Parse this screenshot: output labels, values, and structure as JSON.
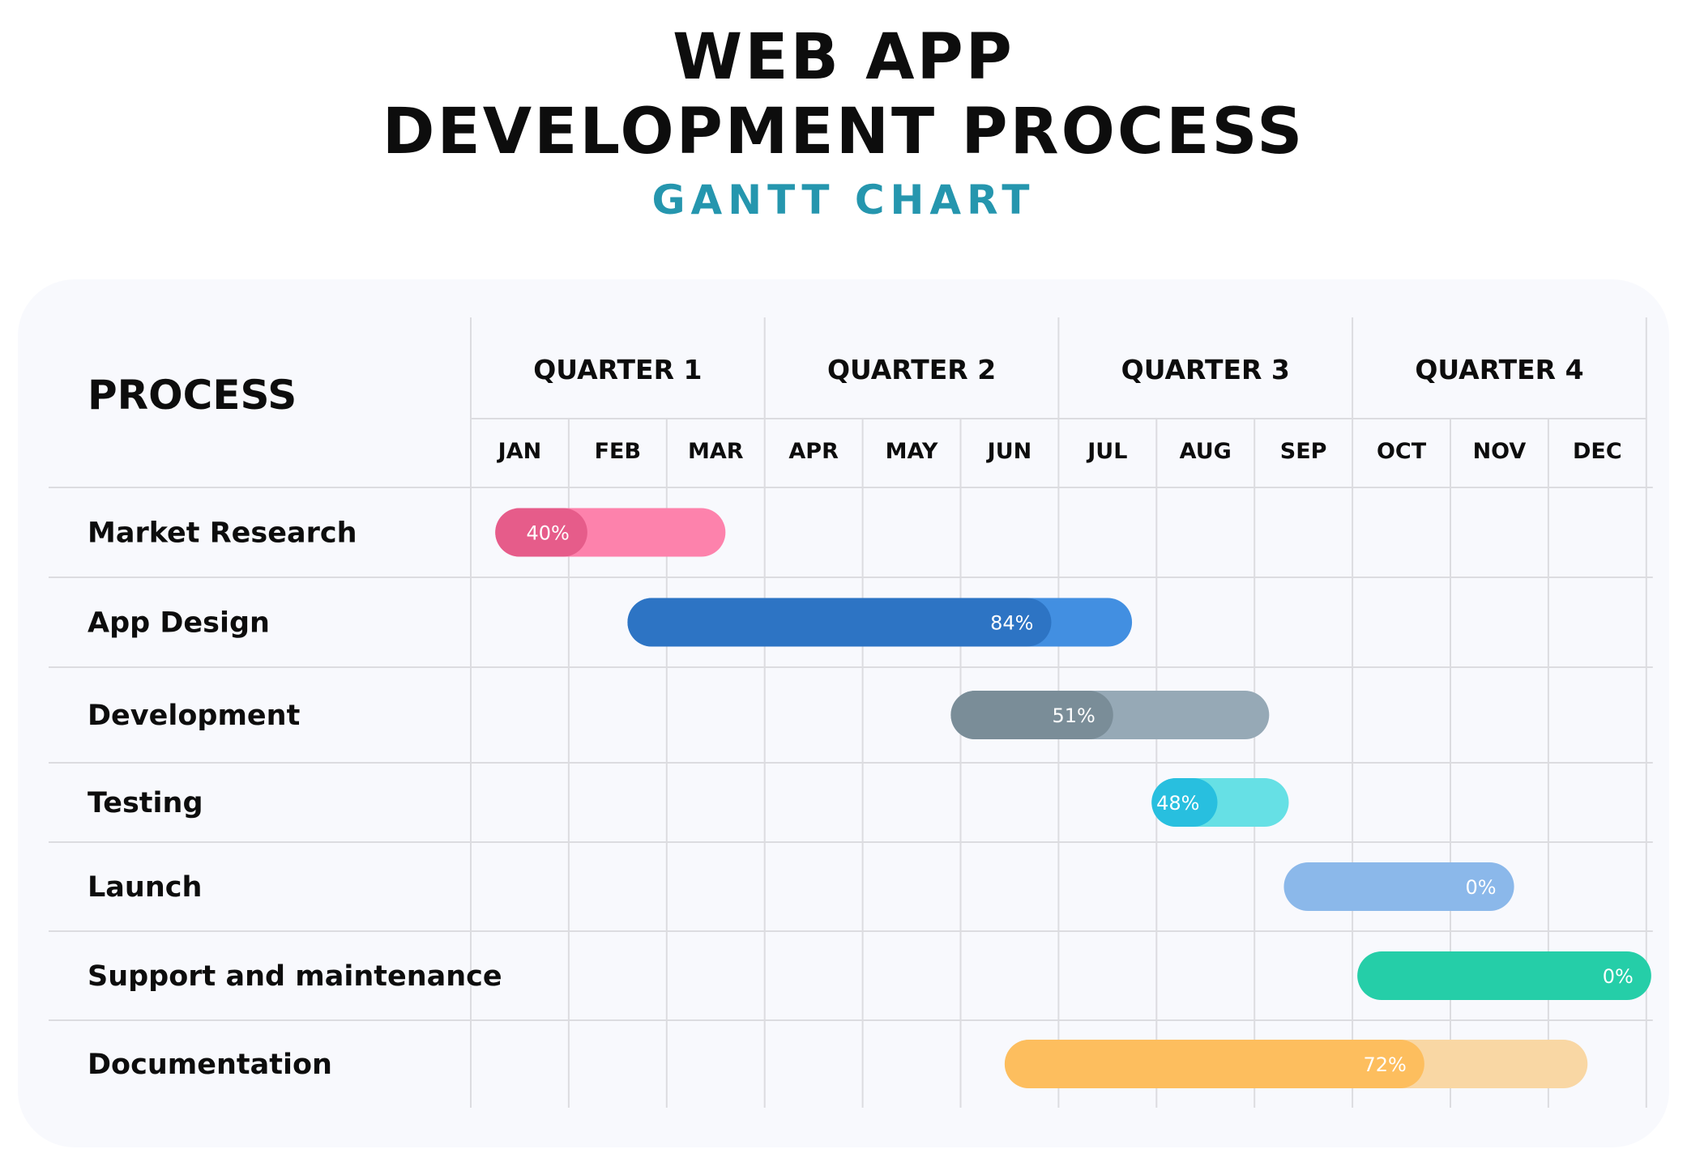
{
  "header": {
    "title_line1": "WEB APP",
    "title_line2": "DEVELOPMENT PROCESS",
    "subtitle": "GANTT CHART"
  },
  "table": {
    "process_header": "PROCESS"
  },
  "colors": {
    "panel_bg": "#f8f9fd",
    "grid": "#dcdce0",
    "title": "#0d0d0d",
    "subtitle": "#2596ae"
  },
  "chart_data": {
    "type": "gantt",
    "title": "WEB APP DEVELOPMENT PROCESS",
    "subtitle": "GANTT CHART",
    "quarters": [
      "QUARTER 1",
      "QUARTER 2",
      "QUARTER 3",
      "QUARTER 4"
    ],
    "months": [
      "JAN",
      "FEB",
      "MAR",
      "APR",
      "MAY",
      "JUN",
      "JUL",
      "AUG",
      "SEP",
      "OCT",
      "NOV",
      "DEC"
    ],
    "x_unit": "month (0 = start of JAN, 12 = end of DEC)",
    "tasks": [
      {
        "name": "Market Research",
        "start": 0.25,
        "end": 2.6,
        "progress": 40,
        "label": "40%",
        "color": "#fd82ac",
        "done_color": "#e65c8a"
      },
      {
        "name": "App Design",
        "start": 1.6,
        "end": 6.75,
        "progress": 84,
        "label": "84%",
        "color": "#428fe1",
        "done_color": "#2d74c4"
      },
      {
        "name": "Development",
        "start": 4.9,
        "end": 8.15,
        "progress": 51,
        "label": "51%",
        "color": "#96a9b6",
        "done_color": "#7a8d98"
      },
      {
        "name": "Testing",
        "start": 6.95,
        "end": 8.35,
        "progress": 48,
        "label": "48%",
        "color": "#66e0e5",
        "done_color": "#28bfdf"
      },
      {
        "name": "Launch",
        "start": 8.3,
        "end": 10.65,
        "progress": 0,
        "label": "0%",
        "color": "#8bb8ea",
        "done_color": "#8bb8ea"
      },
      {
        "name": "Support and maintenance",
        "start": 9.05,
        "end": 12.05,
        "progress": 0,
        "label": "0%",
        "color": "#25cea8",
        "done_color": "#25cea8"
      },
      {
        "name": "Documentation",
        "start": 5.45,
        "end": 11.4,
        "progress": 72,
        "label": "72%",
        "color": "#f9d7a4",
        "done_color": "#fdbe5e"
      }
    ]
  }
}
